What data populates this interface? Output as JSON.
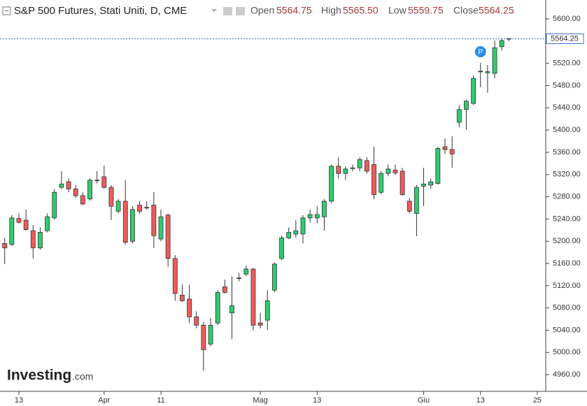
{
  "header": {
    "title": "S&P 500 Futures, Stati Uniti, D, CME",
    "open_label": "Open",
    "open_value": "5564.75",
    "high_label": "High",
    "high_value": "5565.50",
    "low_label": "Low",
    "low_value": "5559.75",
    "close_label": "Close",
    "close_value": "5564.25"
  },
  "watermark": {
    "brand": "Investing",
    "suffix": ".com"
  },
  "chart_data": {
    "type": "candlestick",
    "categories": [
      null,
      null,
      "13",
      null,
      null,
      null,
      null,
      null,
      null,
      null,
      null,
      null,
      null,
      null,
      "Apr",
      null,
      null,
      null,
      null,
      null,
      null,
      null,
      "11",
      null,
      null,
      null,
      null,
      null,
      null,
      null,
      null,
      null,
      null,
      null,
      null,
      null,
      "Mag",
      null,
      null,
      null,
      null,
      null,
      null,
      null,
      "13",
      null,
      null,
      null,
      null,
      null,
      null,
      null,
      null,
      null,
      null,
      null,
      null,
      null,
      null,
      "Giu",
      null,
      null,
      null,
      null,
      null,
      null,
      null,
      "13",
      null,
      null,
      null,
      null,
      null,
      null,
      null,
      "25"
    ],
    "open": [
      5196,
      5194,
      5241,
      5238,
      5219,
      5188,
      5219,
      5242,
      5297,
      5307,
      5294,
      5282,
      5276,
      5309,
      5316,
      5297,
      5254,
      5272,
      5200,
      5265,
      5261,
      5265,
      5204,
      5247,
      5169,
      5103,
      5096,
      5064,
      5049,
      5015,
      5053,
      5118,
      5071,
      5134,
      5141,
      5150,
      5053,
      5058,
      5112,
      5169,
      5206,
      5213,
      5213,
      5242,
      5242,
      5244,
      5272,
      5335,
      5322,
      5331,
      5332,
      5345,
      5338,
      5288,
      5322,
      5328,
      5326,
      5272,
      5250,
      5299,
      5301,
      5304,
      5370,
      5365,
      5414,
      5437,
      5448,
      5505,
      5503,
      5502,
      5550,
      5564.75,
      null,
      null,
      null,
      null
    ],
    "high": [
      5206,
      5247,
      5250,
      5257,
      5229,
      5225,
      5250,
      5294,
      5326,
      5313,
      5301,
      5288,
      5313,
      5326,
      5336,
      5301,
      5276,
      5310,
      5263,
      5272,
      5272,
      5288,
      5257,
      5250,
      5175,
      5122,
      5122,
      5074,
      5055,
      5062,
      5112,
      5131,
      5137,
      5143,
      5156,
      5152,
      5071,
      5112,
      5162,
      5210,
      5225,
      5238,
      5247,
      5257,
      5263,
      5276,
      5338,
      5351,
      5335,
      5338,
      5351,
      5351,
      5370,
      5326,
      5338,
      5338,
      5332,
      5278,
      5301,
      5332,
      5313,
      5370,
      5385,
      5389,
      5445,
      5455,
      5498,
      5521,
      5517,
      5561,
      5565,
      5565.5,
      null,
      null,
      null,
      null
    ],
    "low": [
      5159,
      5192,
      5232,
      5219,
      5169,
      5185,
      5216,
      5239,
      5294,
      5288,
      5278,
      5265,
      5273,
      5304,
      5294,
      5238,
      5250,
      5194,
      5196,
      5250,
      5257,
      5188,
      5200,
      5154,
      5093,
      5091,
      5053,
      5043,
      4967,
      5011,
      5049,
      5106,
      5024,
      5128,
      5137,
      5040,
      5043,
      5040,
      5108,
      5166,
      5204,
      5206,
      5196,
      5234,
      5232,
      5219,
      5269,
      5313,
      5310,
      5326,
      5326,
      5322,
      5276,
      5284,
      5317,
      5319,
      5282,
      5250,
      5209,
      5263,
      5294,
      5302,
      5357,
      5332,
      5405,
      5401,
      5445,
      5477,
      5467,
      5493,
      5543,
      5559.75,
      null,
      null,
      null,
      null
    ],
    "close": [
      5188,
      5242,
      5234,
      5221,
      5188,
      5216,
      5244,
      5288,
      5303,
      5294,
      5282,
      5267,
      5310,
      5310,
      5297,
      5263,
      5272,
      5198,
      5257,
      5254,
      5260,
      5210,
      5244,
      5169,
      5106,
      5093,
      5064,
      5049,
      5005,
      5049,
      5108,
      5108,
      5084,
      5133,
      5150,
      5049,
      5049,
      5093,
      5159,
      5206,
      5216,
      5219,
      5242,
      5248,
      5248,
      5272,
      5335,
      5322,
      5330,
      5332,
      5347,
      5326,
      5284,
      5322,
      5330,
      5323,
      5284,
      5254,
      5297,
      5303,
      5307,
      5367,
      5365,
      5357,
      5437,
      5452,
      5493,
      5506,
      5505,
      5548,
      5561,
      5564.25,
      null,
      null,
      null,
      null
    ],
    "up_color": "#2ecc71",
    "down_color": "#ef5b5b",
    "ylim": [
      4930,
      5634
    ],
    "yticks": [
      {
        "value": 4960,
        "label": "4960.00"
      },
      {
        "value": 5000,
        "label": "5000.00"
      },
      {
        "value": 5040,
        "label": "5040.00"
      },
      {
        "value": 5080,
        "label": "5080.00"
      },
      {
        "value": 5120,
        "label": "5120.00"
      },
      {
        "value": 5160,
        "label": "5160.00"
      },
      {
        "value": 5200,
        "label": "5200.00"
      },
      {
        "value": 5240,
        "label": "5240.00"
      },
      {
        "value": 5280,
        "label": "5280.00"
      },
      {
        "value": 5320,
        "label": "5320.00"
      },
      {
        "value": 5360,
        "label": "5360.00"
      },
      {
        "value": 5400,
        "label": "5400.00"
      },
      {
        "value": 5440,
        "label": "5440.00"
      },
      {
        "value": 5480,
        "label": "5480.00"
      },
      {
        "value": 5520,
        "label": "5520.00"
      },
      {
        "value": 5560,
        "label": "5560.00"
      },
      {
        "value": 5600,
        "label": "5600.00"
      }
    ],
    "last_price": {
      "value": 5564.25,
      "label": "5564.25"
    },
    "annotation": {
      "text": "P",
      "index": 67
    }
  }
}
